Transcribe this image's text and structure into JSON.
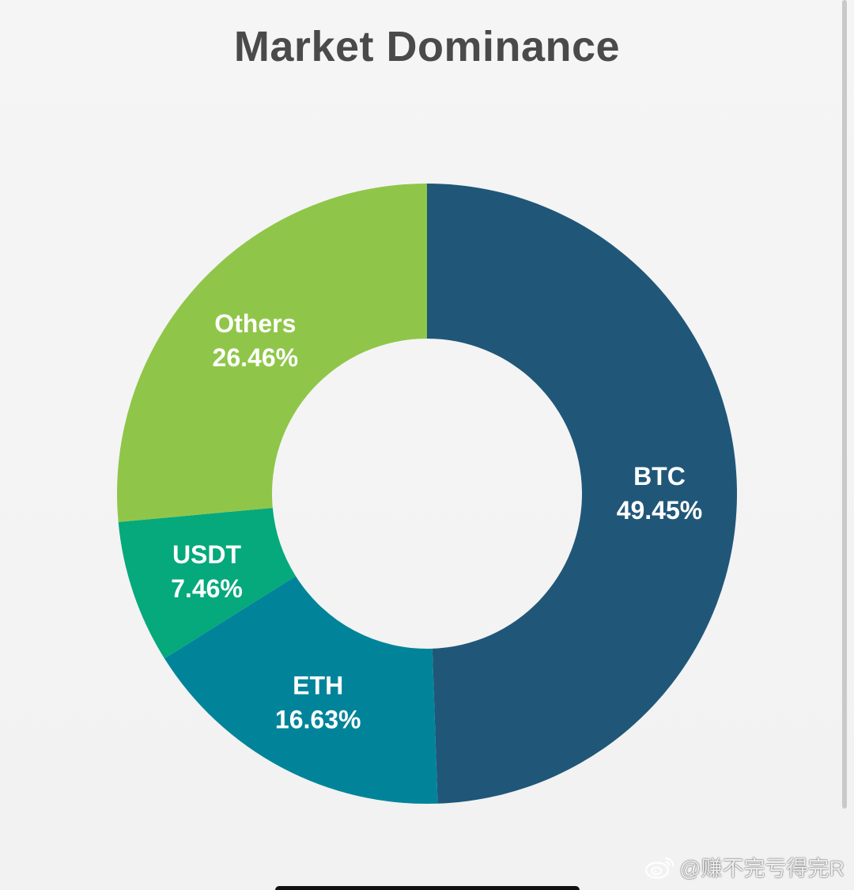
{
  "chart_data": {
    "type": "pie",
    "title": "Market Dominance",
    "categories": [
      "BTC",
      "ETH",
      "USDT",
      "Others"
    ],
    "values": [
      49.45,
      16.63,
      7.46,
      26.46
    ],
    "value_labels": [
      "49.45%",
      "16.63%",
      "7.46%",
      "26.46%"
    ],
    "colors": [
      "#205779",
      "#01849a",
      "#05a97b",
      "#8fc649"
    ],
    "donut": true,
    "start": "top",
    "direction": "clockwise"
  },
  "watermark": {
    "text": "@赚不完亏得完R",
    "icon": "weibo-icon"
  }
}
